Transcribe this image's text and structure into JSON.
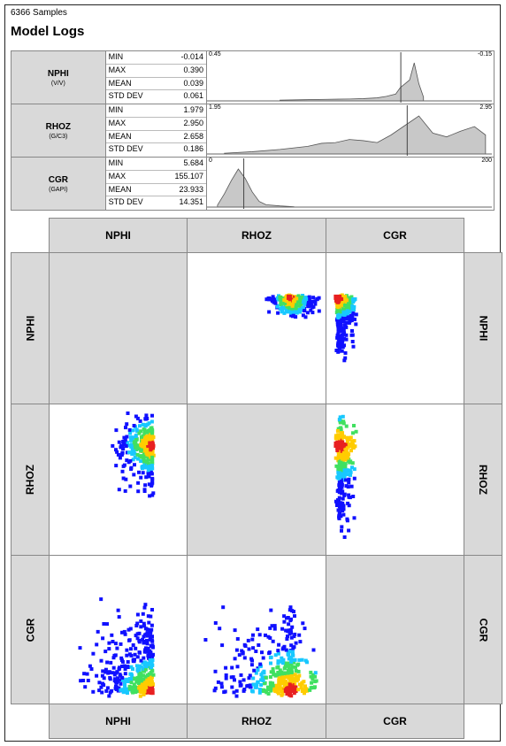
{
  "header": {
    "samples": "6366 Samples",
    "title": "Model Logs"
  },
  "stat_labels": [
    "MIN",
    "MAX",
    "MEAN",
    "STD DEV"
  ],
  "logs": [
    {
      "name": "NPHI",
      "unit": "(V/V)",
      "min": "-0.014",
      "max": "0.390",
      "mean": "0.039",
      "std": "0.061",
      "axis_left": "0.45",
      "axis_right": "-0.15"
    },
    {
      "name": "RHOZ",
      "unit": "(G/C3)",
      "min": "1.979",
      "max": "2.950",
      "mean": "2.658",
      "std": "0.186",
      "axis_left": "1.95",
      "axis_right": "2.95"
    },
    {
      "name": "CGR",
      "unit": "(GAPI)",
      "min": "5.684",
      "max": "155.107",
      "mean": "23.933",
      "std": "14.351",
      "axis_left": "0",
      "axis_right": "200"
    }
  ],
  "matrix": {
    "columns": [
      "NPHI",
      "RHOZ",
      "CGR"
    ],
    "rows": [
      "NPHI",
      "RHOZ",
      "CGR"
    ]
  },
  "colors": {
    "header_bg": "#d9d9d9",
    "hist_fill": "#c8c8c8",
    "density_low": "#1010ff",
    "density_mid": "#18c8ff",
    "density_high": "#e82020"
  },
  "chart_data": [
    {
      "type": "histogram",
      "name": "NPHI",
      "x_range": [
        0.45,
        -0.15
      ],
      "mean": 0.039,
      "bin_centers": [
        0.3,
        0.25,
        0.2,
        0.15,
        0.12,
        0.09,
        0.07,
        0.05,
        0.04,
        0.03,
        0.02,
        0.01,
        0.0,
        -0.01
      ],
      "heights": [
        0.02,
        0.03,
        0.04,
        0.05,
        0.06,
        0.08,
        0.12,
        0.18,
        0.35,
        0.45,
        0.55,
        1.0,
        0.45,
        0.1
      ]
    },
    {
      "type": "histogram",
      "name": "RHOZ",
      "x_range": [
        1.95,
        2.95
      ],
      "mean": 2.658,
      "bin_centers": [
        2.0,
        2.1,
        2.2,
        2.3,
        2.35,
        2.4,
        2.45,
        2.5,
        2.55,
        2.6,
        2.65,
        2.7,
        2.75,
        2.8,
        2.85,
        2.9,
        2.94
      ],
      "heights": [
        0.02,
        0.06,
        0.12,
        0.2,
        0.28,
        0.3,
        0.38,
        0.35,
        0.3,
        0.5,
        0.75,
        1.0,
        0.55,
        0.45,
        0.6,
        0.72,
        0.5
      ]
    },
    {
      "type": "histogram",
      "name": "CGR",
      "x_range": [
        0,
        200
      ],
      "mean": 23.933,
      "bin_centers": [
        5,
        10,
        15,
        20,
        25,
        30,
        35,
        40,
        50,
        60
      ],
      "heights": [
        0.05,
        0.35,
        0.7,
        1.0,
        0.75,
        0.4,
        0.15,
        0.06,
        0.03,
        0.01
      ]
    },
    {
      "type": "heatmap",
      "name": "crossplot matrix",
      "variables": [
        "NPHI",
        "RHOZ",
        "CGR"
      ],
      "pairs": [
        {
          "x": "RHOZ",
          "y": "NPHI",
          "dense_x": [
            2.5,
            2.95
          ],
          "dense_y": [
            0.0,
            0.1
          ],
          "peak": [
            2.7,
            0.02
          ]
        },
        {
          "x": "CGR",
          "y": "NPHI",
          "dense_x": [
            5,
            40
          ],
          "dense_y": [
            -0.01,
            0.3
          ],
          "peak": [
            10,
            0.02
          ]
        },
        {
          "x": "NPHI",
          "y": "RHOZ",
          "dense_x": [
            -0.01,
            0.2
          ],
          "dense_y": [
            2.3,
            2.95
          ],
          "peak": [
            0.0,
            2.7
          ]
        },
        {
          "x": "CGR",
          "y": "RHOZ",
          "dense_x": [
            5,
            40
          ],
          "dense_y": [
            2.0,
            2.95
          ],
          "peak": [
            12,
            2.7
          ]
        },
        {
          "x": "NPHI",
          "y": "CGR",
          "dense_x": [
            -0.01,
            0.35
          ],
          "dense_y": [
            5,
            150
          ],
          "peak": [
            0.0,
            15
          ]
        },
        {
          "x": "RHOZ",
          "y": "CGR",
          "dense_x": [
            2.0,
            2.95
          ],
          "dense_y": [
            5,
            150
          ],
          "peak": [
            2.7,
            15
          ]
        }
      ]
    }
  ]
}
